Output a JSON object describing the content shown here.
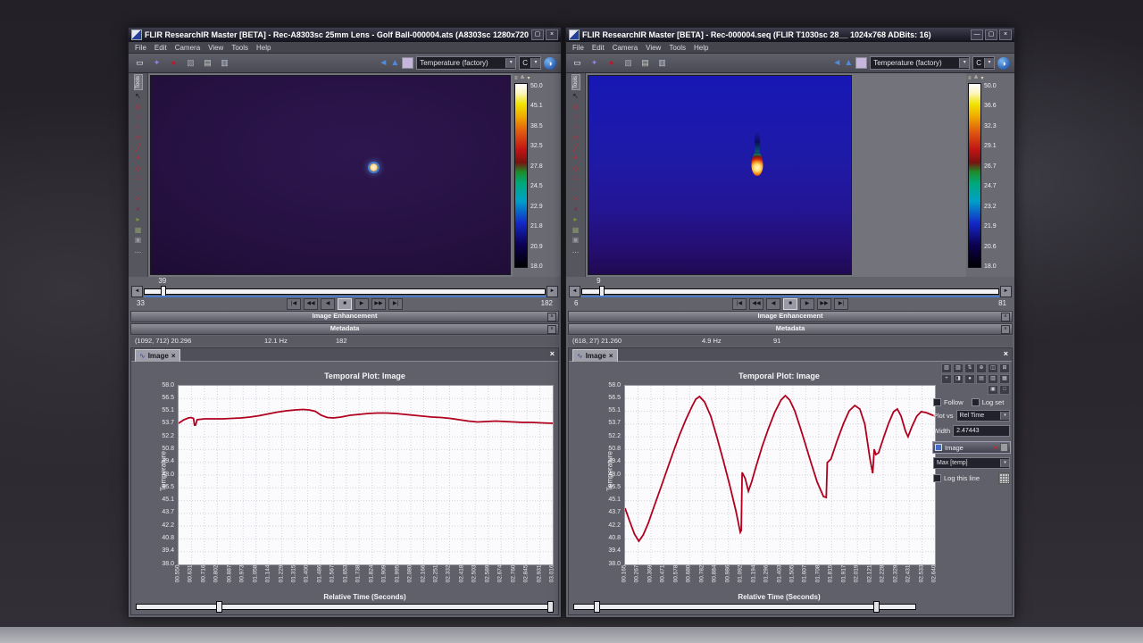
{
  "page": {
    "bottom_band_color": "#b0b0b6"
  },
  "windows": [
    {
      "titlebar": {
        "title": "FLIR ResearchIR Master [BETA] - Rec-A8303sc 25mm Lens - Golf Ball-000004.ats (A8303sc 1280x720 ADBits: ...",
        "controls": [
          {
            "name": "maximize-button",
            "glyph": "▢"
          },
          {
            "name": "close-button",
            "glyph": "×"
          }
        ]
      },
      "menu": [
        "File",
        "Edit",
        "Camera",
        "View",
        "Tools",
        "Help"
      ],
      "toolbar": {
        "left_icons": [
          {
            "name": "connect-camera-icon",
            "glyph": "▭",
            "color": "#f2f2f6"
          },
          {
            "name": "crosshair-icon",
            "glyph": "✦",
            "color": "#8f7fe8"
          },
          {
            "name": "record-icon",
            "glyph": "●",
            "color": "#d01020"
          },
          {
            "name": "snapshot-icon",
            "glyph": "▧",
            "color": "#a8a8b2"
          },
          {
            "name": "image-stack-icon",
            "glyph": "▤",
            "color": "#c2d0c2"
          },
          {
            "name": "export-frames-icon",
            "glyph": "▥",
            "color": "#bcc4d4"
          }
        ],
        "flip_horizontal_icon": "◄",
        "flip_vertical_icon": "▲",
        "colormap_value": "Temperature (factory)",
        "unit_value": "C",
        "info_icon": "◑"
      },
      "tools_tab": "Tools",
      "tool_strip": [
        {
          "name": "cursor-tool-icon",
          "glyph": "↖",
          "color": "#16161e"
        },
        {
          "name": "roi-rect-icon",
          "glyph": "□",
          "color": "#cc2233"
        },
        {
          "name": "roi-ellipse-icon",
          "glyph": "○",
          "color": "#cc2233"
        },
        {
          "name": "roi-curve-icon",
          "glyph": "~",
          "color": "#cc2233"
        },
        {
          "name": "roi-polygon-icon",
          "glyph": "▱",
          "color": "#cc2233"
        },
        {
          "name": "roi-line-icon",
          "glyph": "╱",
          "color": "#cc2233"
        },
        {
          "name": "roi-cross-icon",
          "glyph": "+",
          "color": "#cc2233"
        },
        {
          "name": "roi-diamond-icon",
          "glyph": "◇",
          "color": "#cc2233"
        },
        {
          "name": "spot-meter-icon",
          "glyph": "∴",
          "color": "#cc2233"
        },
        {
          "name": "rotate-roi-icon",
          "glyph": "·",
          "color": "#cc2233"
        },
        {
          "name": "delete-roi-icon",
          "glyph": "×",
          "color": "#e02030"
        },
        {
          "name": "delete-all-roi-icon",
          "glyph": "×",
          "color": "#a01828"
        },
        {
          "name": "play-roi-icon",
          "glyph": "▸",
          "color": "#7a9a30"
        },
        {
          "name": "image-tool-icon",
          "glyph": "▦",
          "color": "#8a9a70"
        },
        {
          "name": "image-tool2-icon",
          "glyph": "▣",
          "color": "#9a9aa4"
        },
        {
          "name": "more-tools-button",
          "glyph": "…",
          "color": "#d8d8de"
        }
      ],
      "colorbar": {
        "top_icons": [
          {
            "name": "scale-settings-icon",
            "glyph": "≡"
          },
          {
            "name": "scale-auto-icon",
            "glyph": "≛"
          },
          {
            "name": "scale-menu-icon",
            "glyph": "▾"
          }
        ],
        "labels": [
          "50.0",
          "45.1",
          "38.5",
          "32.5",
          "27.8",
          "24.5",
          "22.9",
          "21.8",
          "20.9",
          "18.0"
        ]
      },
      "frame_slider": {
        "current": "39",
        "min": "33",
        "max": "182"
      },
      "playback": [
        "|◀",
        "◀◀",
        "◀",
        "■",
        "▶",
        "▶▶",
        "▶|"
      ],
      "panels": {
        "enhancement": "Image Enhancement",
        "metadata": "Metadata"
      },
      "status": {
        "cursor": "(1092, 712) 20.296",
        "rate": "12.1 Hz",
        "frame_count": "182"
      },
      "plot": {
        "tab_label": "Image",
        "tab_close": "×",
        "panel_close": "×"
      }
    },
    {
      "titlebar": {
        "title": "FLIR ResearchIR Master [BETA] - Rec-000004.seq (FLIR T1030sc 28__ 1024x768 ADBits: 16)",
        "controls": [
          {
            "name": "minimize-button",
            "glyph": "—"
          },
          {
            "name": "maximize-button",
            "glyph": "▢"
          },
          {
            "name": "close-button",
            "glyph": "×"
          }
        ]
      },
      "menu": [
        "File",
        "Edit",
        "Camera",
        "View",
        "Tools",
        "Help"
      ],
      "toolbar": {
        "left_icons": [
          {
            "name": "connect-camera-icon",
            "glyph": "▭",
            "color": "#f2f2f6"
          },
          {
            "name": "crosshair-icon",
            "glyph": "✦",
            "color": "#8f7fe8"
          },
          {
            "name": "record-icon",
            "glyph": "●",
            "color": "#d01020"
          },
          {
            "name": "snapshot-icon",
            "glyph": "▧",
            "color": "#a8a8b2"
          },
          {
            "name": "image-stack-icon",
            "glyph": "▤",
            "color": "#c2d0c2"
          },
          {
            "name": "export-frames-icon",
            "glyph": "▥",
            "color": "#bcc4d4"
          }
        ],
        "flip_horizontal_icon": "◄",
        "flip_vertical_icon": "▲",
        "colormap_value": "Temperature (factory)",
        "unit_value": "C",
        "info_icon": "◑"
      },
      "tools_tab": "Tools",
      "tool_strip": [
        {
          "name": "cursor-tool-icon",
          "glyph": "↖",
          "color": "#16161e"
        },
        {
          "name": "roi-rect-icon",
          "glyph": "□",
          "color": "#cc2233"
        },
        {
          "name": "roi-ellipse-icon",
          "glyph": "○",
          "color": "#cc2233"
        },
        {
          "name": "roi-curve-icon",
          "glyph": "~",
          "color": "#cc2233"
        },
        {
          "name": "roi-polygon-icon",
          "glyph": "▱",
          "color": "#cc2233"
        },
        {
          "name": "roi-line-icon",
          "glyph": "╱",
          "color": "#cc2233"
        },
        {
          "name": "roi-cross-icon",
          "glyph": "+",
          "color": "#cc2233"
        },
        {
          "name": "roi-diamond-icon",
          "glyph": "◇",
          "color": "#cc2233"
        },
        {
          "name": "spot-meter-icon",
          "glyph": "∴",
          "color": "#cc2233"
        },
        {
          "name": "rotate-roi-icon",
          "glyph": "·",
          "color": "#cc2233"
        },
        {
          "name": "delete-roi-icon",
          "glyph": "×",
          "color": "#e02030"
        },
        {
          "name": "delete-all-roi-icon",
          "glyph": "×",
          "color": "#a01828"
        },
        {
          "name": "play-roi-icon",
          "glyph": "▸",
          "color": "#7a9a30"
        },
        {
          "name": "image-tool-icon",
          "glyph": "▦",
          "color": "#8a9a70"
        },
        {
          "name": "image-tool2-icon",
          "glyph": "▣",
          "color": "#9a9aa4"
        },
        {
          "name": "more-tools-button",
          "glyph": "…",
          "color": "#d8d8de"
        }
      ],
      "colorbar": {
        "top_icons": [
          {
            "name": "scale-settings-icon",
            "glyph": "≡"
          },
          {
            "name": "scale-auto-icon",
            "glyph": "≛"
          },
          {
            "name": "scale-menu-icon",
            "glyph": "▾"
          }
        ],
        "labels": [
          "50.0",
          "36.6",
          "32.3",
          "29.1",
          "26.7",
          "24.7",
          "23.2",
          "21.9",
          "20.6",
          "18.0"
        ]
      },
      "frame_slider": {
        "current": "9",
        "min": "6",
        "max": "81"
      },
      "playback": [
        "|◀",
        "◀◀",
        "◀",
        "■",
        "▶",
        "▶▶",
        "▶|"
      ],
      "panels": {
        "enhancement": "Image Enhancement",
        "metadata": "Metadata"
      },
      "status": {
        "cursor": "(618, 27) 21.260",
        "rate": "4.9 Hz",
        "frame_count": "91"
      },
      "plot": {
        "tab_label": "Image",
        "tab_close": "×",
        "panel_close": "×"
      },
      "side_panel": {
        "icons": [
          {
            "name": "plot-zoom-in-icon",
            "glyph": "▧"
          },
          {
            "name": "plot-zoom-out-icon",
            "glyph": "▨"
          },
          {
            "name": "plot-pan-icon",
            "glyph": "⇅"
          },
          {
            "name": "plot-fit-icon",
            "glyph": "⊕"
          },
          {
            "name": "plot-split-icon",
            "glyph": "◫"
          },
          {
            "name": "plot-add-icon",
            "glyph": "⊞"
          },
          {
            "name": "plot-cursor-icon",
            "glyph": "+"
          },
          {
            "name": "plot-copy-icon",
            "glyph": "◨"
          },
          {
            "name": "plot-point-icon",
            "glyph": "●"
          },
          {
            "name": "plot-export-icon",
            "glyph": "▤"
          },
          {
            "name": "plot-print-icon",
            "glyph": "▥"
          },
          {
            "name": "plot-save-icon",
            "glyph": "▦"
          },
          {
            "name": "plot-table-icon",
            "glyph": "▣"
          },
          {
            "name": "plot-clear-icon",
            "glyph": "□"
          }
        ],
        "follow_label": "Follow",
        "logset_label": "Log set",
        "plotvs_label": "Plot vs",
        "plotvs_value": "Rel Time",
        "width_label": "Width",
        "width_value": "2.47443",
        "layer_label": "Image",
        "layer_close": "×",
        "series_value": "Max [temp]",
        "logline_label": "Log this line"
      }
    }
  ],
  "chart_data": [
    {
      "type": "line",
      "title": "Temporal Plot: Image",
      "xlabel": "Relative Time (Seconds)",
      "ylabel": "Temperature",
      "ylim": [
        38.0,
        58.0
      ],
      "xlim": [
        0.55,
        3.016
      ],
      "grid": true,
      "line_color": "#b0001e",
      "yticks": [
        "58.0",
        "56.5",
        "55.1",
        "53.7",
        "52.2",
        "50.8",
        "49.4",
        "48.0",
        "46.5",
        "45.1",
        "43.7",
        "42.2",
        "40.8",
        "39.4",
        "38.0"
      ],
      "xticks": [
        "00.550",
        "00.631",
        "00.716",
        "00.802",
        "00.887",
        "00.973",
        "01.058",
        "01.144",
        "01.229",
        "01.315",
        "01.400",
        "01.486",
        "01.567",
        "01.653",
        "01.738",
        "01.824",
        "01.909",
        "01.995",
        "02.080",
        "02.166",
        "02.251",
        "02.332",
        "02.418",
        "02.503",
        "02.589",
        "02.674",
        "02.760",
        "02.845",
        "02.931",
        "03.016"
      ],
      "series": [
        {
          "name": "Image Max [temp]",
          "x": [
            0.55,
            0.585,
            0.615,
            0.632,
            0.648,
            0.655,
            0.662,
            0.672,
            0.72,
            0.78,
            0.84,
            0.9,
            0.96,
            1.02,
            1.08,
            1.14,
            1.2,
            1.26,
            1.32,
            1.37,
            1.41,
            1.45,
            1.49,
            1.53,
            1.57,
            1.62,
            1.68,
            1.74,
            1.8,
            1.86,
            1.92,
            1.98,
            2.04,
            2.1,
            2.16,
            2.22,
            2.28,
            2.34,
            2.4,
            2.46,
            2.52,
            2.58,
            2.64,
            2.7,
            2.76,
            2.82,
            2.88,
            2.94,
            3.016
          ],
          "y": [
            53.8,
            54.2,
            54.4,
            54.45,
            54.35,
            53.6,
            53.6,
            54.2,
            54.3,
            54.3,
            54.3,
            54.35,
            54.4,
            54.5,
            54.65,
            54.85,
            55.05,
            55.2,
            55.3,
            55.35,
            55.3,
            55.15,
            54.7,
            54.45,
            54.4,
            54.5,
            54.7,
            54.8,
            54.9,
            54.95,
            54.95,
            54.9,
            54.8,
            54.7,
            54.6,
            54.5,
            54.45,
            54.35,
            54.2,
            54.05,
            53.95,
            54.0,
            54.05,
            54.0,
            53.95,
            53.9,
            53.9,
            53.85,
            53.8
          ]
        }
      ]
    },
    {
      "type": "line",
      "title": "Temporal Plot: Image",
      "xlabel": "Relative Time (Seconds)",
      "ylabel": "Temperature",
      "ylim": [
        38.0,
        58.0
      ],
      "xlim": [
        0.165,
        2.64
      ],
      "grid": true,
      "line_color": "#b0001e",
      "yticks": [
        "58.0",
        "56.5",
        "55.1",
        "53.7",
        "52.2",
        "50.8",
        "49.4",
        "48.0",
        "46.5",
        "45.1",
        "43.7",
        "42.2",
        "40.8",
        "39.4",
        "38.0"
      ],
      "xticks": [
        "00.165",
        "00.267",
        "00.369",
        "00.471",
        "00.578",
        "00.680",
        "00.782",
        "00.884",
        "00.986",
        "01.092",
        "01.194",
        "01.296",
        "01.403",
        "01.505",
        "01.607",
        "01.708",
        "01.815",
        "01.917",
        "02.019",
        "02.121",
        "02.228",
        "02.329",
        "02.431",
        "02.533",
        "02.640"
      ],
      "series": [
        {
          "name": "Image Max [temp]",
          "x": [
            0.165,
            0.2,
            0.24,
            0.275,
            0.31,
            0.35,
            0.4,
            0.45,
            0.5,
            0.55,
            0.6,
            0.65,
            0.7,
            0.73,
            0.76,
            0.8,
            0.85,
            0.9,
            0.95,
            1.0,
            1.05,
            1.085,
            1.093,
            1.1,
            1.125,
            1.15,
            1.175,
            1.21,
            1.26,
            1.31,
            1.36,
            1.41,
            1.445,
            1.48,
            1.52,
            1.56,
            1.6,
            1.65,
            1.7,
            1.75,
            1.772,
            1.78,
            1.81,
            1.86,
            1.91,
            1.955,
            2.0,
            2.04,
            2.08,
            2.12,
            2.143,
            2.155,
            2.168,
            2.19,
            2.23,
            2.27,
            2.31,
            2.34,
            2.37,
            2.405,
            2.425,
            2.455,
            2.495,
            2.53,
            2.57,
            2.605,
            2.64
          ],
          "y": [
            44.3,
            42.9,
            41.4,
            40.6,
            41.3,
            42.6,
            44.6,
            46.6,
            48.6,
            50.6,
            52.5,
            54.2,
            55.7,
            56.5,
            56.8,
            56.2,
            54.6,
            52.2,
            49.6,
            46.9,
            44.0,
            41.6,
            41.8,
            48.3,
            47.6,
            46.2,
            47.2,
            48.9,
            51.2,
            53.2,
            55.0,
            56.4,
            56.9,
            56.4,
            55.2,
            53.5,
            51.7,
            49.4,
            47.2,
            45.6,
            45.5,
            49.4,
            49.8,
            51.9,
            53.8,
            55.2,
            55.8,
            55.4,
            53.7,
            49.9,
            48.2,
            50.9,
            50.3,
            50.5,
            52.2,
            53.8,
            55.1,
            55.4,
            54.6,
            52.9,
            52.3,
            53.4,
            54.6,
            55.1,
            55.0,
            54.8,
            54.6
          ]
        }
      ]
    }
  ]
}
